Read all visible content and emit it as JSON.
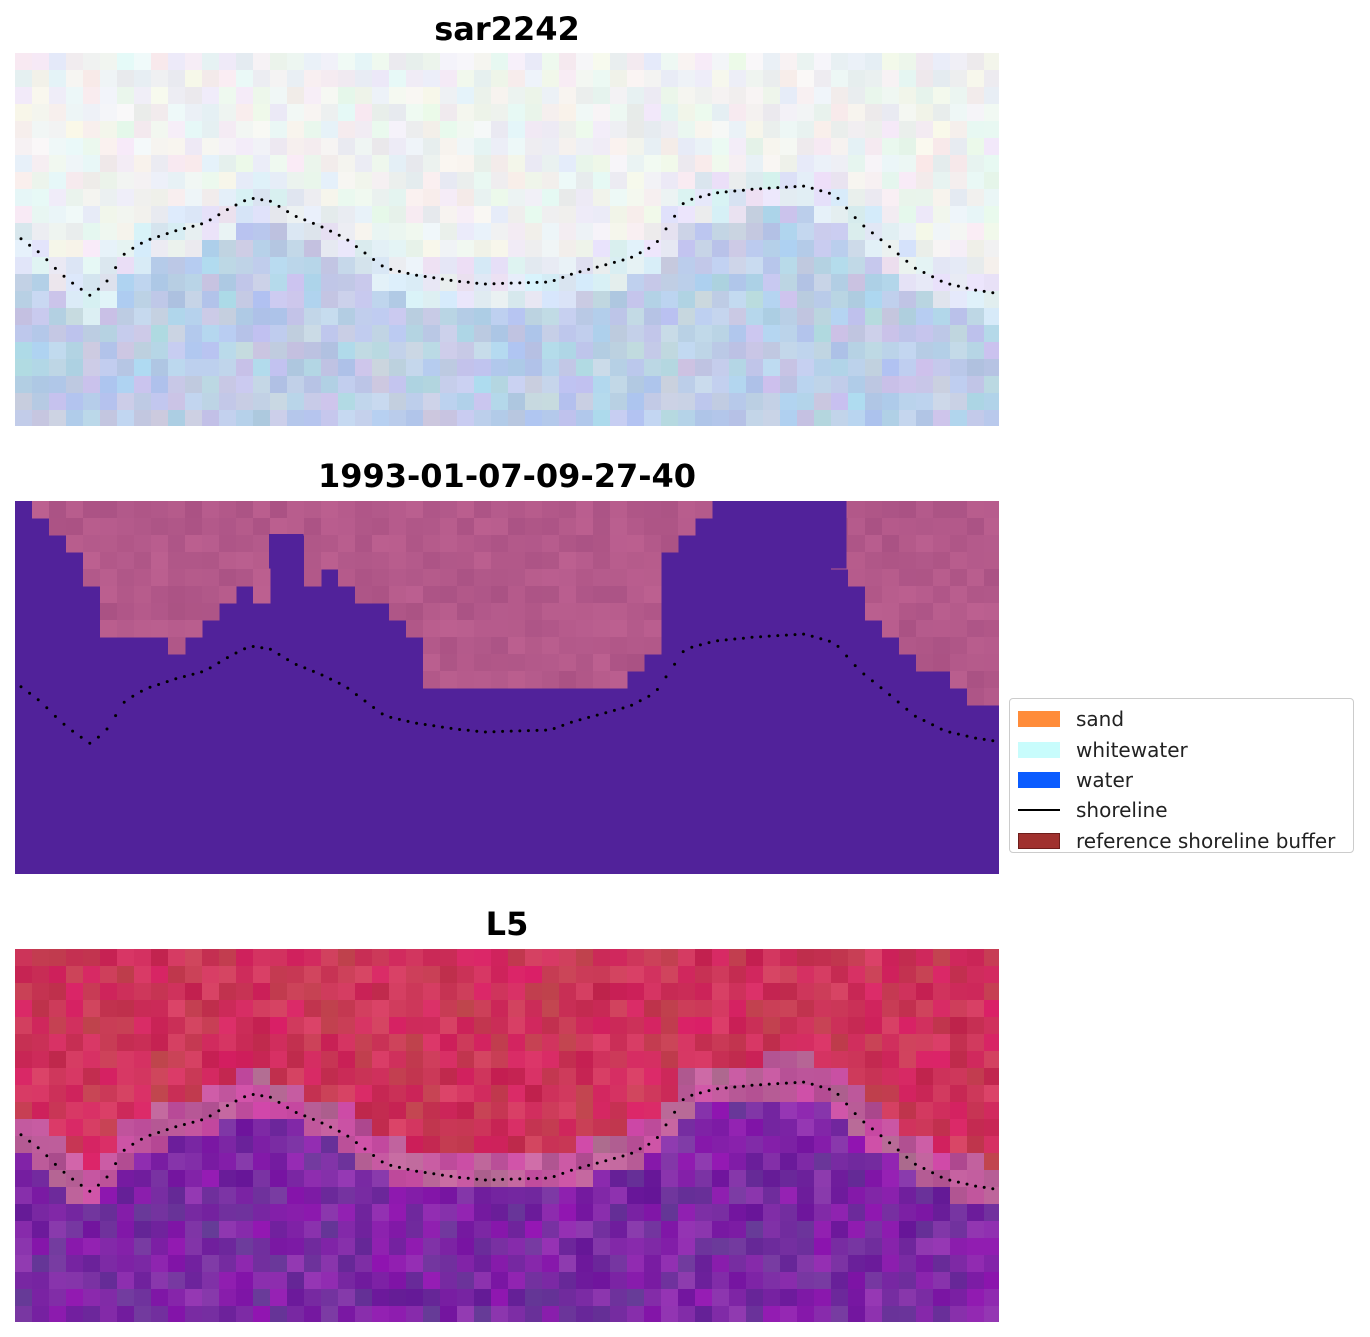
{
  "panels": [
    {
      "title": "sar2242",
      "style": "sar"
    },
    {
      "title": "1993-01-07-09-27-40",
      "style": "classified"
    },
    {
      "title": "L5",
      "style": "index"
    }
  ],
  "legend": [
    {
      "label": "sand",
      "color": "#ff8c3a",
      "kind": "patch"
    },
    {
      "label": "whitewater",
      "color": "#c8fcfc",
      "kind": "patch"
    },
    {
      "label": "water",
      "color": "#0a5cff",
      "kind": "patch"
    },
    {
      "label": "shoreline",
      "color": "#000000",
      "kind": "line"
    },
    {
      "label": "reference shoreline buffer",
      "color": "#a0312e",
      "kind": "patch"
    }
  ],
  "colors": {
    "classified_water": "#51229a",
    "classified_land": "#b2588a",
    "shoreline_dots": "#000000"
  }
}
